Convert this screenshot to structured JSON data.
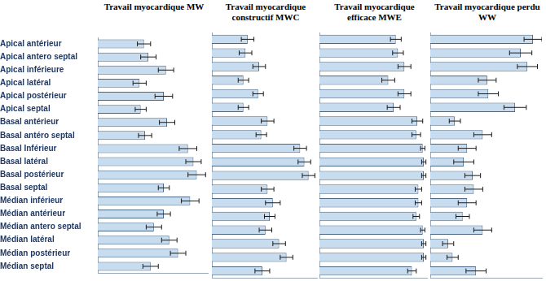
{
  "chart_data": [
    {
      "type": "bar",
      "orientation": "horizontal",
      "title": "Travail myocardique MW",
      "categories": [
        "Apical antérieur",
        "Apical antero septal",
        "Apical inférieure",
        "Apical latéral",
        "Apical postérieur",
        "Apical septal",
        "Basal antérieur",
        "Basal antéro septal",
        "Basal Inférieur",
        "Basal latéral",
        "Basal postérieur",
        "Basal septal",
        "Médian inférieur",
        "Médian antérieur",
        "Médian antero septal",
        "Médian latéral",
        "Médian postérieur",
        "Médian septal"
      ],
      "values": [
        42,
        46,
        62,
        38,
        60,
        39,
        63,
        43,
        82,
        87,
        90,
        60,
        84,
        60,
        51,
        65,
        73,
        48
      ],
      "errors": [
        6,
        7,
        7,
        6,
        8,
        5,
        7,
        6,
        8,
        7,
        8,
        5,
        8,
        6,
        7,
        7,
        7,
        7
      ],
      "xlim": [
        0,
        100
      ],
      "color": "#c8dcef",
      "grid": false,
      "tick_labels": "y"
    },
    {
      "type": "bar",
      "orientation": "horizontal",
      "title": "Travail myocardique constructif MWC",
      "categories": [
        "Apical antérieur",
        "Apical antero septal",
        "Apical inférieure",
        "Apical latéral",
        "Apical postérieur",
        "Apical septal",
        "Basal antérieur",
        "Basal antéro septal",
        "Basal Inférieur",
        "Basal latéral",
        "Basal postérieur",
        "Basal septal",
        "Médian inférieur",
        "Médian antérieur",
        "Médian antero septal",
        "Médian latéral",
        "Médian postérieur",
        "Médian septal"
      ],
      "values": [
        34,
        32,
        45,
        30,
        44,
        30,
        53,
        47,
        84,
        88,
        92,
        53,
        58,
        55,
        51,
        64,
        71,
        48
      ],
      "errors": [
        6,
        6,
        6,
        5,
        5,
        5,
        6,
        5,
        6,
        6,
        6,
        6,
        7,
        5,
        6,
        6,
        6,
        7
      ],
      "xlim": [
        0,
        100
      ],
      "color": "#c8dcef",
      "grid": false,
      "tick_labels": false
    },
    {
      "type": "bar",
      "orientation": "horizontal",
      "title": "Travail myocardique efficace MWE",
      "categories": [
        "Apical antérieur",
        "Apical antero septal",
        "Apical inférieure",
        "Apical latéral",
        "Apical postérieur",
        "Apical septal",
        "Basal antérieur",
        "Basal antéro septal",
        "Basal Inférieur",
        "Basal latéral",
        "Basal postérieur",
        "Basal septal",
        "Médian inférieur",
        "Médian antérieur",
        "Médian antero septal",
        "Médian latéral",
        "Médian postérieur",
        "Médian septal"
      ],
      "values": [
        71,
        73,
        79,
        64,
        79,
        69,
        91,
        90,
        96,
        97,
        97,
        92,
        92,
        90,
        96,
        97,
        97,
        86
      ],
      "errors": [
        5,
        5,
        6,
        6,
        6,
        6,
        5,
        4,
        2,
        2,
        2,
        3,
        3,
        3,
        2,
        2,
        2,
        4
      ],
      "xlim": [
        0,
        100
      ],
      "color": "#c8dcef",
      "grid": false,
      "tick_labels": false
    },
    {
      "type": "bar",
      "orientation": "horizontal",
      "title": "Travail myocardique perdu WW",
      "categories": [
        "Apical antérieur",
        "Apical antero septal",
        "Apical inférieure",
        "Apical latéral",
        "Apical postérieur",
        "Apical septal",
        "Basal antérieur",
        "Basal antéro septal",
        "Basal Inférieur",
        "Basal latéral",
        "Basal postérieur",
        "Basal septal",
        "Médian inférieur",
        "Médian antérieur",
        "Médian antero septal",
        "Médian latéral",
        "Médian postérieur",
        "Médian septal"
      ],
      "values": [
        92,
        81,
        87,
        51,
        52,
        76,
        22,
        47,
        33,
        30,
        38,
        39,
        33,
        29,
        47,
        16,
        20,
        41
      ],
      "errors": [
        8,
        10,
        9,
        8,
        9,
        10,
        5,
        8,
        8,
        9,
        7,
        8,
        8,
        6,
        8,
        5,
        5,
        9
      ],
      "xlim": [
        0,
        100
      ],
      "color": "#c8dcef",
      "grid": false,
      "tick_labels": false
    }
  ]
}
